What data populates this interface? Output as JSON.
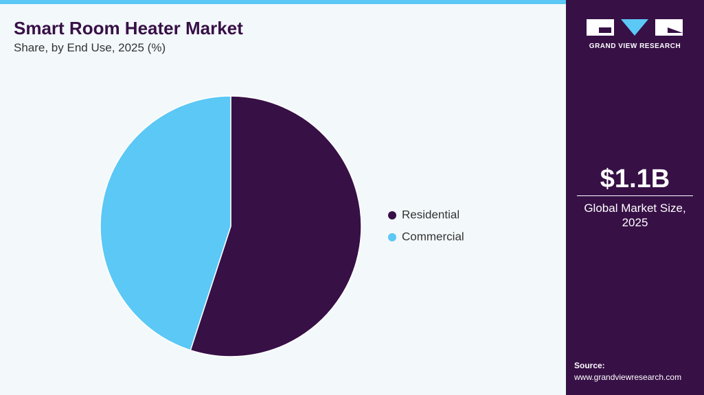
{
  "chart_data": {
    "type": "pie",
    "title": "Smart Room Heater Market",
    "subtitle": "Share, by End Use, 2025 (%)",
    "categories": [
      "Residential",
      "Commercial"
    ],
    "values": [
      55,
      45
    ],
    "colors": [
      "#371046",
      "#5bc8f5"
    ],
    "legend": "right"
  },
  "sidebar": {
    "logo": "GRAND VIEW RESEARCH",
    "market_size": "$1.1B",
    "market_label": "Global Market Size, 2025",
    "source_label": "Source:",
    "source_url": "www.grandviewresearch.com"
  }
}
